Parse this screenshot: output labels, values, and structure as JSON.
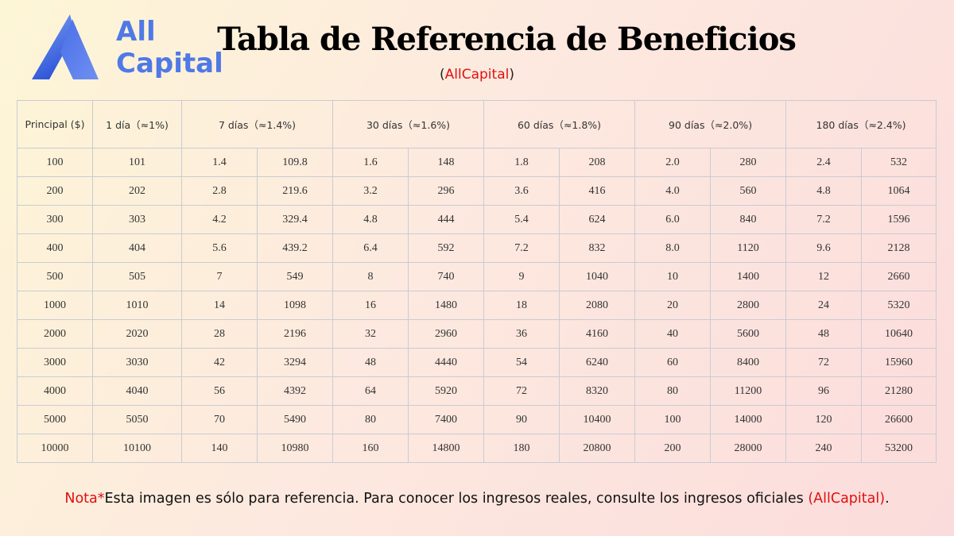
{
  "brand": {
    "line1": "All",
    "line2": "Capital",
    "color": "#4f79e6",
    "logo_icon": "triangle-a-logo-icon"
  },
  "title": "Tabla de Referencia de Beneficios",
  "subtitle": {
    "open": "(",
    "name": "AllCapital",
    "close": ")"
  },
  "table": {
    "headers": [
      "Principal ($)",
      "1 día（≈1%)",
      "7 días（≈1.4%)",
      "30 días（≈1.6%)",
      "60 días（≈1.8%)",
      "90 días（≈2.0%)",
      "180 días（≈2.4%)"
    ],
    "rows": [
      [
        "100",
        "101",
        "1.4",
        "109.8",
        "1.6",
        "148",
        "1.8",
        "208",
        "2.0",
        "280",
        "2.4",
        "532"
      ],
      [
        "200",
        "202",
        "2.8",
        "219.6",
        "3.2",
        "296",
        "3.6",
        "416",
        "4.0",
        "560",
        "4.8",
        "1064"
      ],
      [
        "300",
        "303",
        "4.2",
        "329.4",
        "4.8",
        "444",
        "5.4",
        "624",
        "6.0",
        "840",
        "7.2",
        "1596"
      ],
      [
        "400",
        "404",
        "5.6",
        "439.2",
        "6.4",
        "592",
        "7.2",
        "832",
        "8.0",
        "1120",
        "9.6",
        "2128"
      ],
      [
        "500",
        "505",
        "7",
        "549",
        "8",
        "740",
        "9",
        "1040",
        "10",
        "1400",
        "12",
        "2660"
      ],
      [
        "1000",
        "1010",
        "14",
        "1098",
        "16",
        "1480",
        "18",
        "2080",
        "20",
        "2800",
        "24",
        "5320"
      ],
      [
        "2000",
        "2020",
        "28",
        "2196",
        "32",
        "2960",
        "36",
        "4160",
        "40",
        "5600",
        "48",
        "10640"
      ],
      [
        "3000",
        "3030",
        "42",
        "3294",
        "48",
        "4440",
        "54",
        "6240",
        "60",
        "8400",
        "72",
        "15960"
      ],
      [
        "4000",
        "4040",
        "56",
        "4392",
        "64",
        "5920",
        "72",
        "8320",
        "80",
        "11200",
        "96",
        "21280"
      ],
      [
        "5000",
        "5050",
        "70",
        "5490",
        "80",
        "7400",
        "90",
        "10400",
        "100",
        "14000",
        "120",
        "26600"
      ],
      [
        "10000",
        "10100",
        "140",
        "10980",
        "160",
        "14800",
        "180",
        "20800",
        "200",
        "28000",
        "240",
        "53200"
      ]
    ]
  },
  "note": {
    "label": "Nota*",
    "text": "Esta imagen es sólo para referencia. Para conocer los ingresos reales, consulte los ingresos oficiales ",
    "brand": "(AllCapital)",
    "end": "."
  },
  "colors": {
    "accent_red": "#e01010",
    "grid_line": "#c9cbd3"
  }
}
